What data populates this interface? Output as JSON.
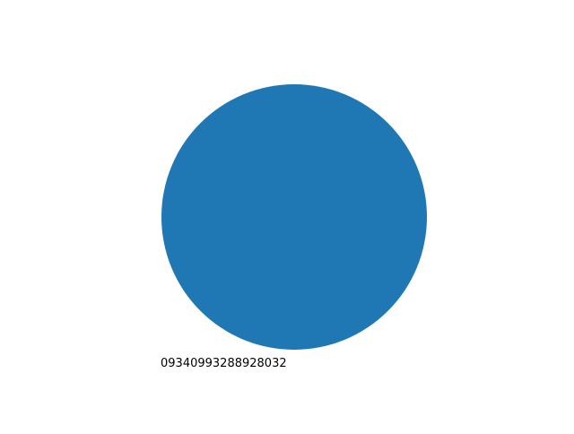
{
  "chart_data": {
    "type": "pie",
    "title": "",
    "slices": [
      {
        "label": "09340993288928032",
        "value": 1,
        "color": "#1f77b4"
      }
    ]
  }
}
